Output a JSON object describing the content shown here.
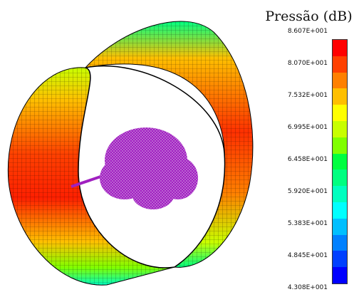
{
  "chart_data": {
    "type": "heatmap",
    "title": "Pressão (dB)",
    "legend_placement": "right",
    "colorbar": {
      "ticks": [
        "8.607E+001",
        "8.070E+001",
        "7.532E+001",
        "6.995E+001",
        "6.458E+001",
        "5.920E+001",
        "5.383E+001",
        "4.845E+001",
        "4.308E+001"
      ],
      "min": 43.08,
      "max": 86.07,
      "colors": [
        "#ff0000",
        "#ff4000",
        "#ff8000",
        "#ffbf00",
        "#ffff00",
        "#c8ff00",
        "#80ff00",
        "#00ff40",
        "#00ff80",
        "#00ffbf",
        "#00ffff",
        "#00bfff",
        "#0080ff",
        "#0040ff",
        "#0000ff"
      ]
    },
    "scene": "cylindrical pressure field surface with central object",
    "object_color": "#a020c0"
  }
}
